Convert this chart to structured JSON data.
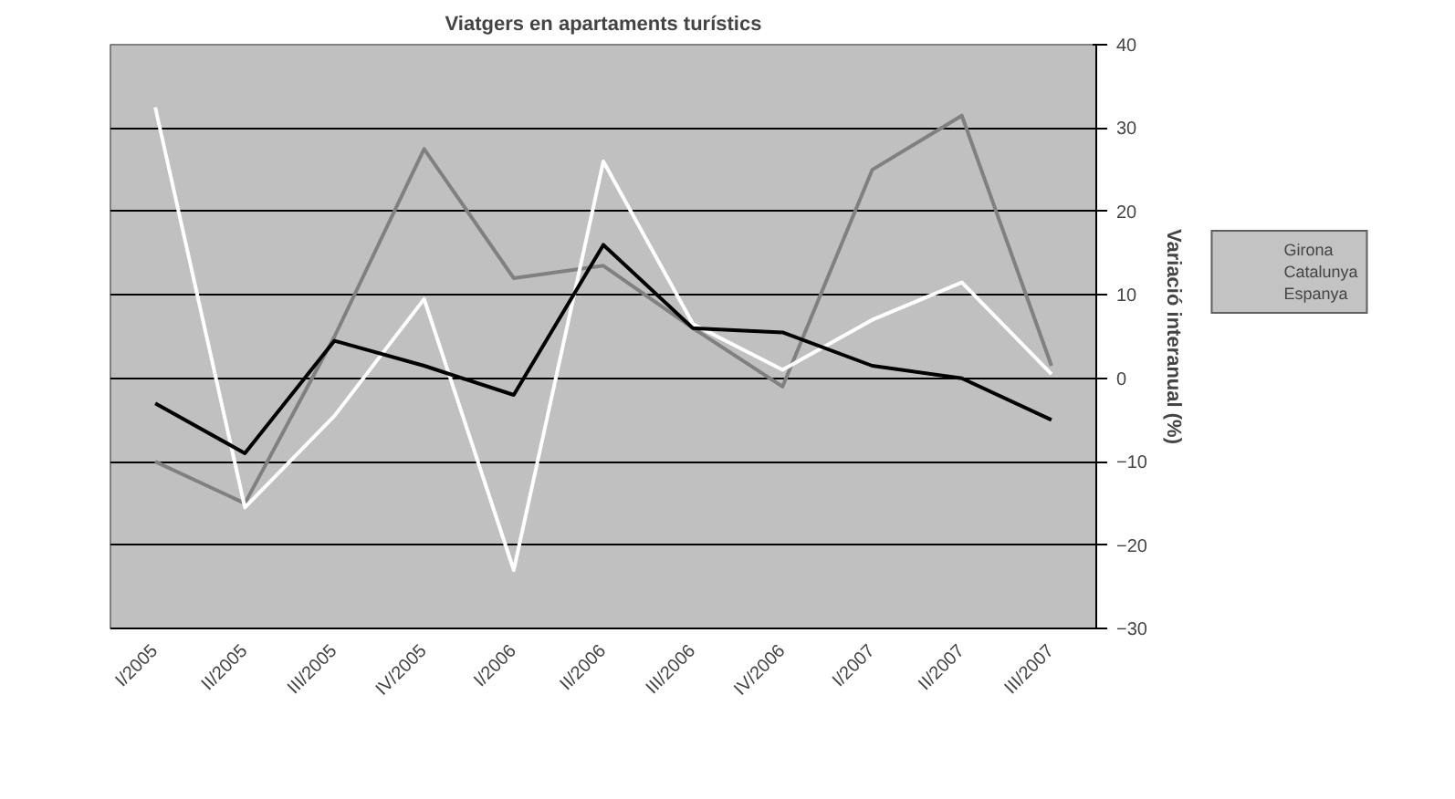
{
  "chart_data": {
    "type": "line",
    "title": "Viatgers en apartaments turístics",
    "ylabel": "Variació interanual (%)",
    "categories": [
      "I/2005",
      "II/2005",
      "III/2005",
      "IV/2005",
      "I/2006",
      "II/2006",
      "III/2006",
      "IV/2006",
      "I/2007",
      "II/2007",
      "III/2007"
    ],
    "series": [
      {
        "name": "Girona",
        "color": "#808080",
        "values": [
          -10,
          -15,
          5,
          27.5,
          12,
          13.5,
          6,
          -1,
          25,
          31.5,
          1.5
        ]
      },
      {
        "name": "Catalunya",
        "color": "#ffffff",
        "values": [
          32.5,
          -15.5,
          -4.5,
          9.5,
          -23,
          26,
          6.5,
          1,
          7,
          11.5,
          0.5
        ]
      },
      {
        "name": "Espanya",
        "color": "#000000",
        "values": [
          -3,
          -9,
          4.5,
          1.5,
          -2,
          16,
          6,
          5.5,
          1.5,
          0,
          -5
        ]
      }
    ],
    "ylim": [
      -30,
      40
    ],
    "yticks": [
      -30,
      -20,
      -10,
      0,
      10,
      20,
      30,
      40
    ],
    "grid": "y",
    "legend": "right",
    "marker": "none",
    "line_style": "solid"
  }
}
